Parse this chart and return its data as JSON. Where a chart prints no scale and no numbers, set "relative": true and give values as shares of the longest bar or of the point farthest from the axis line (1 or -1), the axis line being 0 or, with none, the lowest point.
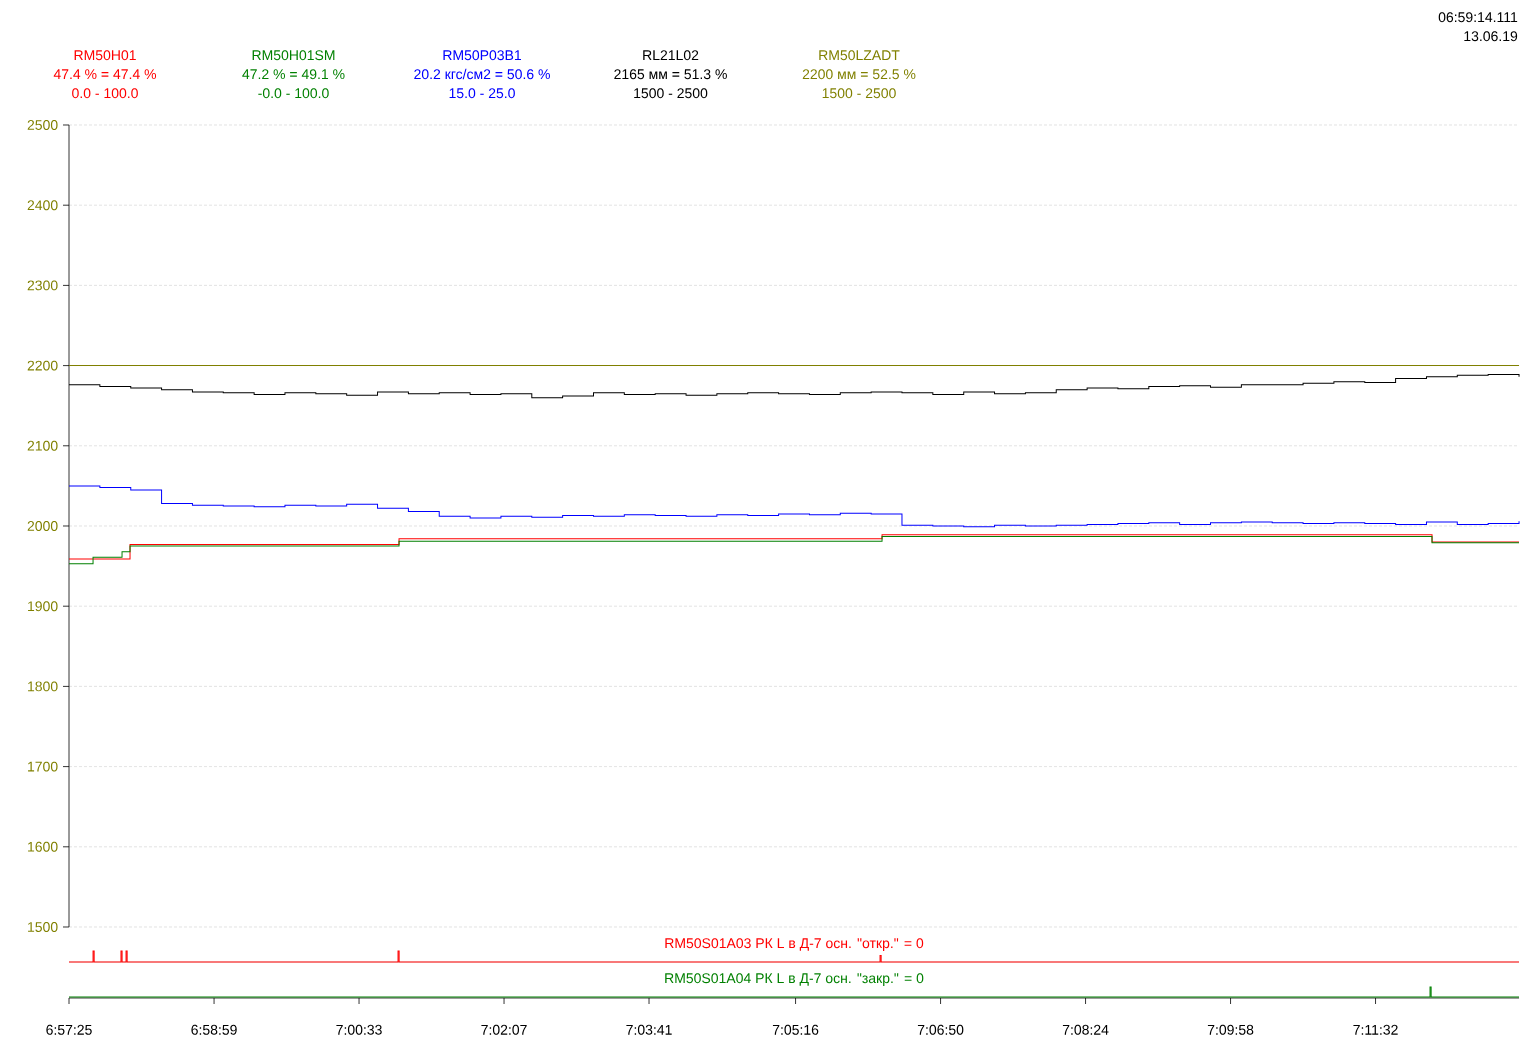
{
  "chart_data": [
    {
      "type": "step",
      "grid": true,
      "legend": "top",
      "tick_labels": "y",
      "x": [
        6.95694,
        6.9625,
        6.96806,
        6.97361,
        6.97917,
        6.98472,
        6.99028,
        6.99583,
        7.00139,
        7.00694,
        7.0125,
        7.01806,
        7.02361,
        7.02917,
        7.03472,
        7.04028,
        7.04583,
        7.05139,
        7.05694,
        7.0625,
        7.06806,
        7.07361,
        7.07917,
        7.08472,
        7.09028,
        7.09583,
        7.10139,
        7.10694,
        7.1125,
        7.11806,
        7.12361,
        7.12917,
        7.13472,
        7.14028,
        7.14583,
        7.15139,
        7.15694,
        7.1625,
        7.16806,
        7.17361,
        7.17917,
        7.18472,
        7.19028,
        7.19583,
        7.20139,
        7.20694,
        7.2125,
        7.21806
      ],
      "xlim": [
        6.95694,
        7.21806
      ],
      "xticks": [
        {
          "value": 6.95694,
          "label": null
        },
        {
          "value": 6.98306,
          "label": null
        },
        {
          "value": 7.00917,
          "label": null
        },
        {
          "value": 7.03528,
          "label": null
        },
        {
          "value": 7.06139,
          "label": null
        },
        {
          "value": 7.08778,
          "label": null
        },
        {
          "value": 7.11389,
          "label": null
        },
        {
          "value": 7.14,
          "label": null
        },
        {
          "value": 7.16611,
          "label": null
        },
        {
          "value": 7.19222,
          "label": null
        }
      ],
      "ylim": [
        1500,
        2500
      ],
      "yticks": [
        1500,
        1600,
        1700,
        1800,
        1900,
        2000,
        2100,
        2200,
        2300,
        2400,
        2500
      ],
      "series": [
        {
          "name": "RM50H01",
          "color": "#ff0000",
          "x": [
            6.95694,
            6.96649,
            6.96793,
            7.01637,
            7.10335,
            7.20239,
            7.21806
          ],
          "values": [
            1959,
            null,
            1977,
            1984,
            1989,
            1980,
            1980
          ]
        },
        {
          "name": "RM50H01SM",
          "color": "#008000",
          "x": [
            6.95694,
            6.96127,
            6.96649,
            6.96793,
            7.01637,
            7.10335,
            7.20239,
            7.21806
          ],
          "values": [
            1953,
            1961,
            1968,
            1975,
            1981,
            1987,
            1979,
            1979
          ]
        },
        {
          "name": "RM50P03B1",
          "color": "#0000ff",
          "values": [
            2050,
            2048,
            2045,
            2028,
            2026,
            2025,
            2024,
            2026,
            2025,
            2027,
            2022,
            2018,
            2012,
            2010,
            2012,
            2011,
            2013,
            2012,
            2014,
            2013,
            2012,
            2014,
            2013,
            2015,
            2014,
            2016,
            2015,
            2001,
            2000,
            1999,
            2001,
            2000,
            2001,
            2002,
            2003,
            2004,
            2002,
            2004,
            2005,
            2004,
            2003,
            2004,
            2003,
            2002,
            2005,
            2002,
            2003,
            2006
          ]
        },
        {
          "name": "RL21L02",
          "color": "#000000",
          "values": [
            2176,
            2174,
            2172,
            2170,
            2167,
            2166,
            2164,
            2166,
            2165,
            2163,
            2167,
            2165,
            2166,
            2164,
            2165,
            2160,
            2162,
            2166,
            2164,
            2165,
            2163,
            2165,
            2166,
            2165,
            2164,
            2166,
            2167,
            2166,
            2164,
            2167,
            2165,
            2166,
            2170,
            2172,
            2171,
            2174,
            2175,
            2173,
            2176,
            2176,
            2178,
            2180,
            2179,
            2184,
            2186,
            2188,
            2189,
            2186
          ]
        },
        {
          "name": "RM50LZADT",
          "color": "#808000",
          "x": [
            6.95694,
            7.21806
          ],
          "values": [
            2200,
            2200
          ]
        }
      ],
      "annotations": [
        "47.4 % = 47.4 %",
        "0.0 - 100.0",
        "47.2 % = 49.1 %",
        "-0.0 - 100.0",
        "20.2 кгс/см2 = 50.6 %",
        "15.0 - 25.0",
        "2165 мм = 51.3 %",
        "1500 - 2500",
        "2200 мм = 52.5 %",
        "1500 - 2500",
        "06:59:14.111",
        "13.06.19"
      ]
    },
    {
      "type": "step",
      "relative": true,
      "tick_labels": false,
      "xlim": [
        6.95694,
        7.21806
      ],
      "xticks": [
        {
          "value": 6.95694,
          "label": null
        },
        {
          "value": 6.98306,
          "label": null
        },
        {
          "value": 7.00917,
          "label": null
        },
        {
          "value": 7.03528,
          "label": null
        },
        {
          "value": 7.06139,
          "label": null
        },
        {
          "value": 7.08778,
          "label": null
        },
        {
          "value": 7.11389,
          "label": null
        },
        {
          "value": 7.14,
          "label": null
        },
        {
          "value": 7.16611,
          "label": null
        },
        {
          "value": 7.19222,
          "label": null
        }
      ],
      "x": [
        6.95694,
        6.96127,
        6.96147,
        6.9663,
        6.9665,
        6.96721,
        6.96741,
        7.01619,
        7.01639,
        7.10299,
        7.10319,
        7.21806
      ],
      "series": [
        {
          "name": "RM50S01A03  РК L в Д-7 осн. \"откр.\" = 0",
          "color": "#ff0000",
          "values": [
            0,
            1,
            0,
            1,
            0,
            1,
            0,
            1,
            0,
            0.6,
            0,
            0
          ]
        }
      ]
    },
    {
      "type": "step",
      "relative": true,
      "tick_labels": "x",
      "xlim": [
        6.95694,
        7.21806
      ],
      "x": [
        6.95694,
        7.20203,
        7.20223,
        7.21806
      ],
      "xticks": [
        {
          "value": 6.95694,
          "label": "6:57:25"
        },
        {
          "value": 6.98306,
          "label": "6:58:59"
        },
        {
          "value": 7.00917,
          "label": "7:00:33"
        },
        {
          "value": 7.03528,
          "label": "7:02:07"
        },
        {
          "value": 7.06139,
          "label": "7:03:41"
        },
        {
          "value": 7.08778,
          "label": "7:05:16"
        },
        {
          "value": 7.11389,
          "label": "7:06:50"
        },
        {
          "value": 7.14,
          "label": "7:08:24"
        },
        {
          "value": 7.16611,
          "label": "7:09:58"
        },
        {
          "value": 7.19222,
          "label": "7:11:32"
        }
      ],
      "series": [
        {
          "name": "RM50S01A04  РК L в Д-7 осн. \"закр.\" = 0",
          "color": "#008000",
          "values": [
            0,
            1,
            0,
            0
          ]
        }
      ]
    }
  ]
}
